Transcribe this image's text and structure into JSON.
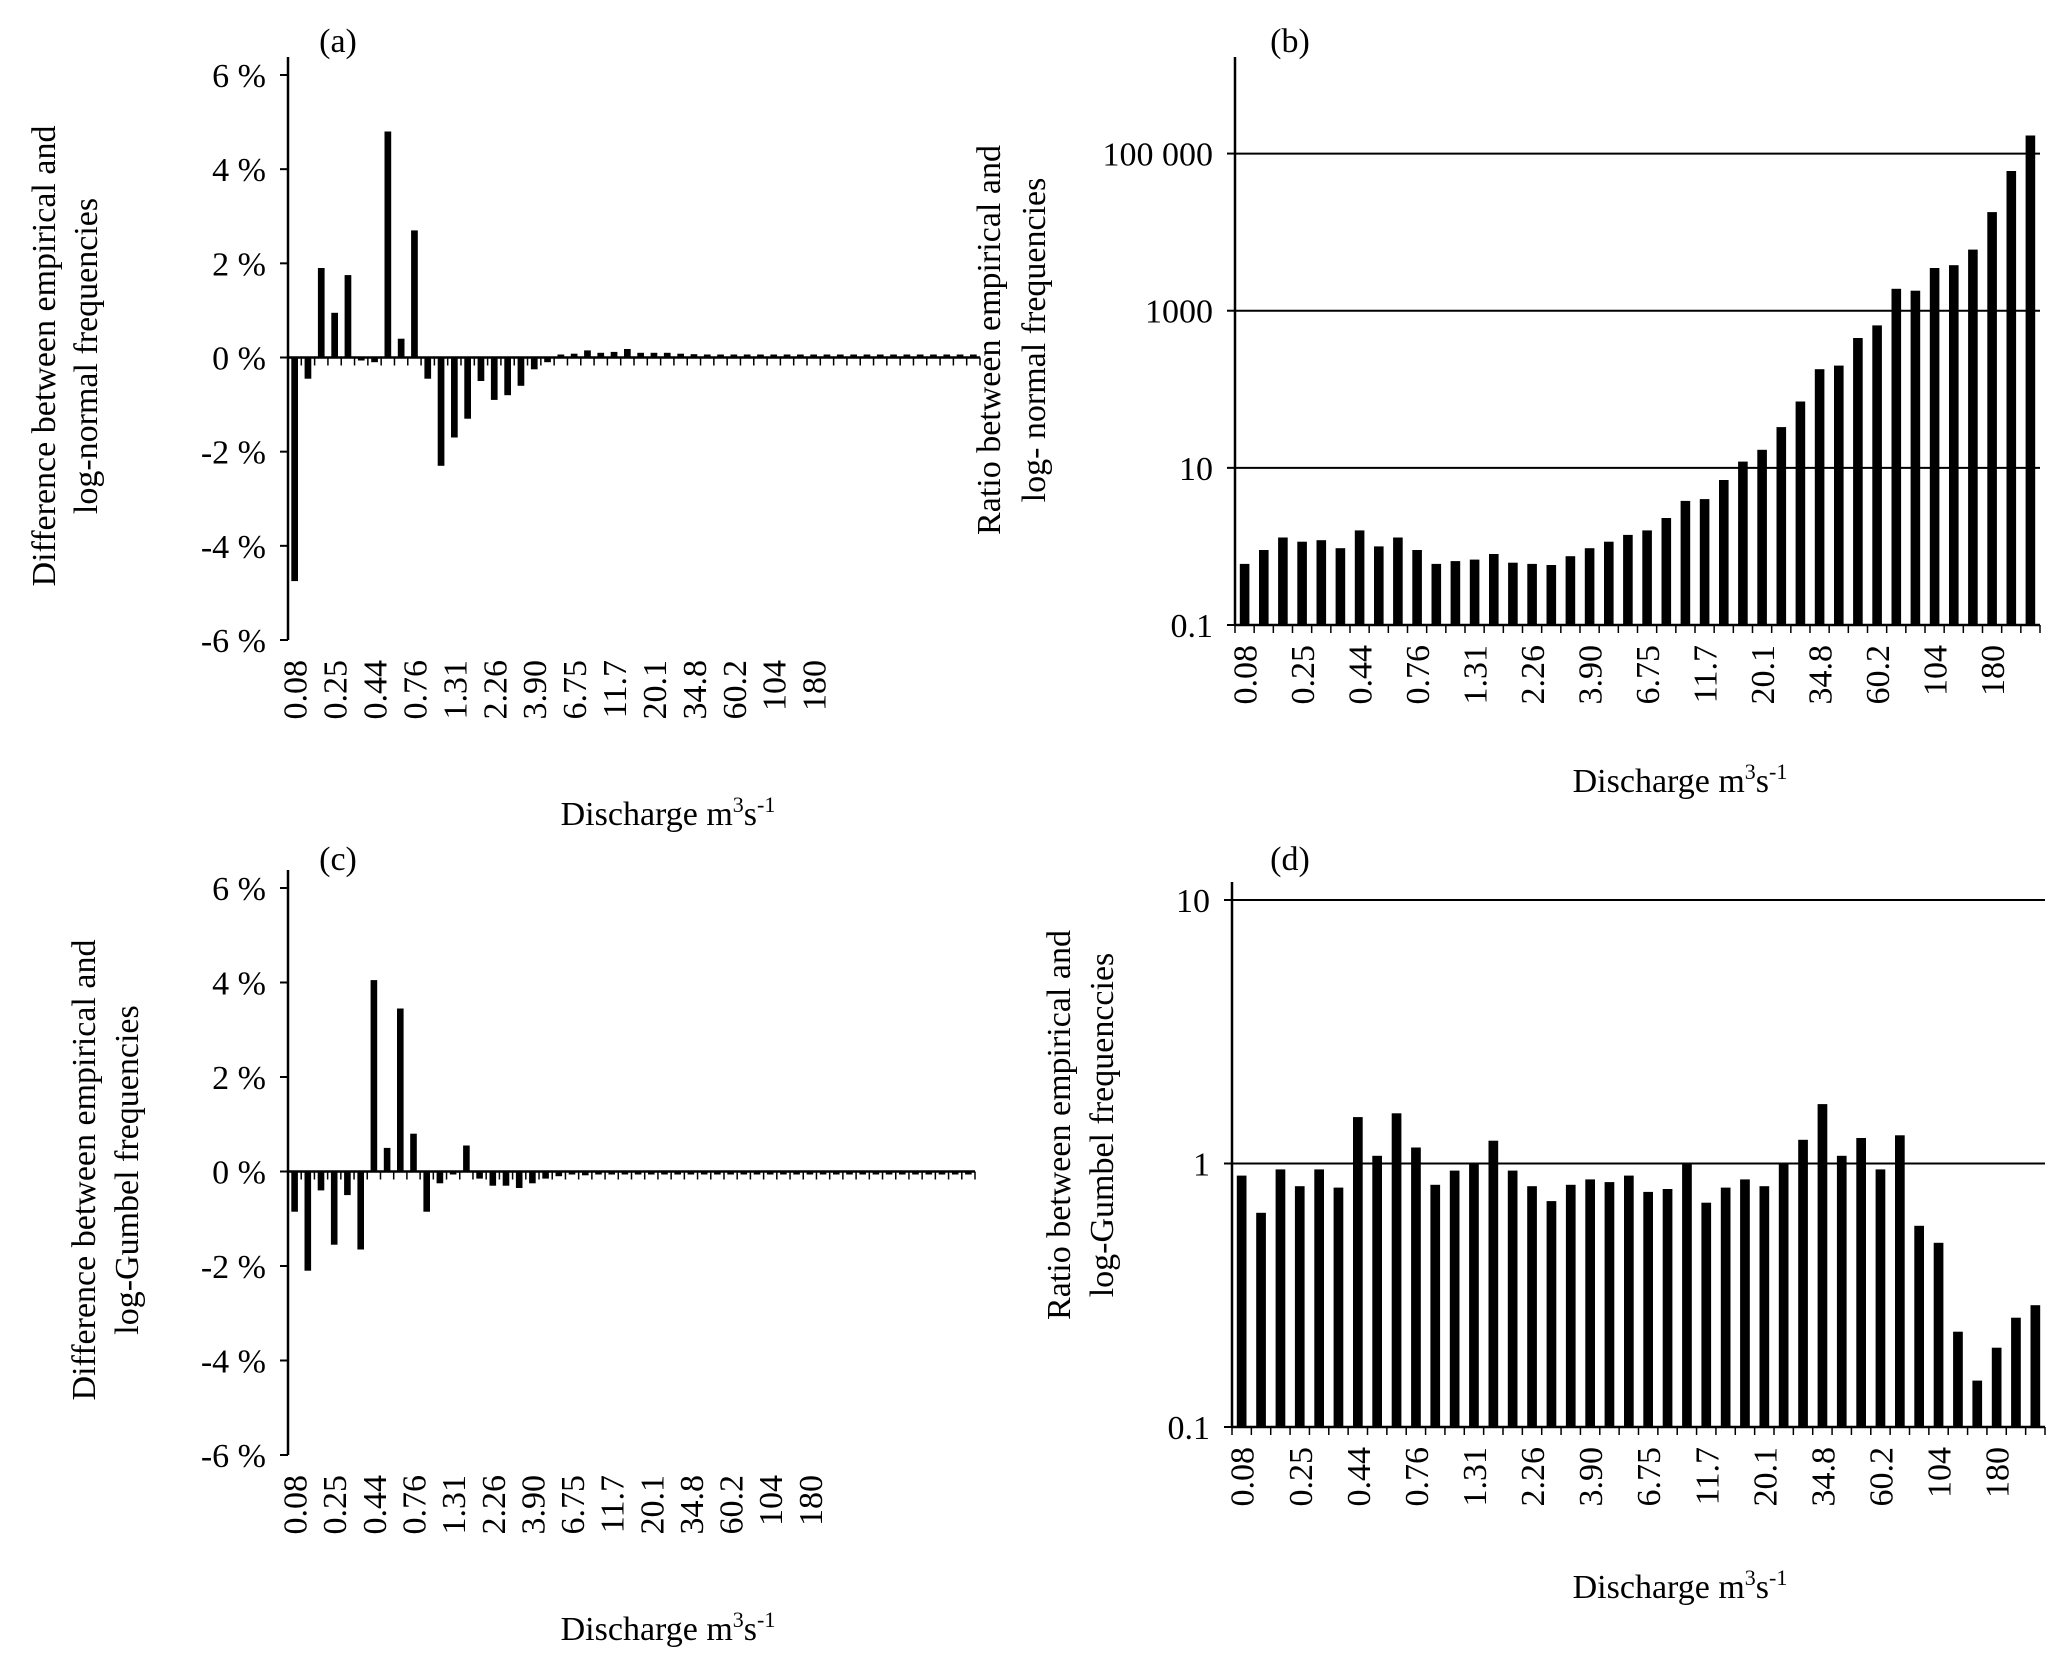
{
  "xlabel_main": "Discharge m",
  "xlabel_sup": "3",
  "xlabel_mid": "s",
  "xlabel_sup2": "-1",
  "chart_data": [
    {
      "id": "a",
      "panel_label": "(a)",
      "type": "bar",
      "ylabel_lines": [
        "Difference between empirical and",
        "log-normal frequencies"
      ],
      "yscale": "linear",
      "ylim": [
        -6,
        6
      ],
      "yticks": [
        6,
        4,
        2,
        0,
        -2,
        -4,
        -6
      ],
      "ytick_labels": [
        "6 %",
        "4 %",
        "2 %",
        "0 %",
        "-2 %",
        "-4 %",
        "-6 %"
      ],
      "grid": false,
      "xtick_labels": [
        "0.08",
        "0.25",
        "0.44",
        "0.76",
        "1.31",
        "2.26",
        "3.90",
        "6.75",
        "11.7",
        "20.1",
        "34.8",
        "60.2",
        "104",
        "180"
      ],
      "xlabel": "Discharge m3s-1",
      "values": [
        -4.75,
        -0.45,
        1.9,
        0.95,
        1.75,
        -0.05,
        -0.1,
        4.8,
        0.4,
        2.7,
        -0.45,
        -2.3,
        -1.7,
        -1.3,
        -0.5,
        -0.9,
        -0.8,
        -0.6,
        -0.25,
        -0.1,
        0.05,
        0.08,
        0.15,
        0.1,
        0.12,
        0.18,
        0.1,
        0.1,
        0.1,
        0.08,
        0.07,
        0.06,
        0.05,
        0.06,
        0.04,
        0.03,
        0.02,
        0.02,
        0.01,
        0.01,
        0.01,
        0.01,
        0.005,
        0.005,
        0.005,
        0.005,
        0.005,
        0.005,
        0.005,
        0.005,
        0.005,
        0.005
      ]
    },
    {
      "id": "b",
      "panel_label": "(b)",
      "type": "bar",
      "ylabel_lines": [
        "Ratio between empirical and",
        "log- normal frequencies"
      ],
      "yscale": "log",
      "ylim": [
        0.1,
        1000000
      ],
      "yticks": [
        0.1,
        10,
        1000,
        100000
      ],
      "ytick_labels": [
        "0.1",
        "10",
        "1000",
        "100 000"
      ],
      "grid": true,
      "xtick_labels": [
        "0.08",
        "0.25",
        "0.44",
        "0.76",
        "1.31",
        "2.26",
        "3.90",
        "6.75",
        "11.7",
        "20.1",
        "34.8",
        "60.2",
        "104",
        "180"
      ],
      "xlabel": "Discharge m3s-1",
      "values": [
        0.6,
        0.9,
        1.3,
        1.15,
        1.2,
        0.95,
        1.6,
        1.0,
        1.3,
        0.9,
        0.6,
        0.65,
        0.68,
        0.8,
        0.62,
        0.6,
        0.58,
        0.75,
        0.95,
        1.15,
        1.4,
        1.6,
        2.3,
        3.8,
        4.0,
        7.0,
        12,
        17,
        33,
        70,
        180,
        200,
        450,
        650,
        1900,
        1800,
        3500,
        3800,
        6000,
        18000,
        60000,
        170000
      ]
    },
    {
      "id": "c",
      "panel_label": "(c)",
      "type": "bar",
      "ylabel_lines": [
        "Difference between empirical and",
        "log-Gumbel frequencies"
      ],
      "yscale": "linear",
      "ylim": [
        -6,
        6
      ],
      "yticks": [
        6,
        4,
        2,
        0,
        -2,
        -4,
        -6
      ],
      "ytick_labels": [
        "6 %",
        "4 %",
        "2 %",
        "0 %",
        "-2 %",
        "-4 %",
        "-6 %"
      ],
      "grid": false,
      "xtick_labels": [
        "0.08",
        "0.25",
        "0.44",
        "0.76",
        "1.31",
        "2.26",
        "3.90",
        "6.75",
        "11.7",
        "20.1",
        "34.8",
        "60.2",
        "104",
        "180"
      ],
      "xlabel": "Discharge m3s-1",
      "values": [
        -0.85,
        -2.1,
        -0.4,
        -1.55,
        -0.5,
        -1.65,
        4.05,
        0.5,
        3.45,
        0.8,
        -0.85,
        -0.25,
        -0.05,
        0.55,
        -0.15,
        -0.3,
        -0.3,
        -0.35,
        -0.25,
        -0.15,
        -0.1,
        -0.05,
        -0.08,
        -0.05,
        -0.05,
        -0.03,
        -0.03,
        -0.02,
        -0.02,
        -0.01,
        -0.01,
        -0.01,
        -0.005,
        -0.005,
        -0.005,
        -0.005,
        -0.005,
        -0.005,
        -0.005,
        -0.005,
        -0.005,
        -0.005,
        -0.005,
        -0.005,
        -0.005,
        -0.005,
        -0.005,
        -0.005,
        -0.005,
        -0.005,
        -0.005,
        -0.005
      ]
    },
    {
      "id": "d",
      "panel_label": "(d)",
      "type": "bar",
      "ylabel_lines": [
        "Ratio between empirical and",
        "log-Gumbel frequenccies"
      ],
      "yscale": "log",
      "ylim": [
        0.1,
        10
      ],
      "yticks": [
        0.1,
        1,
        10
      ],
      "ytick_labels": [
        "0.1",
        "1",
        "10"
      ],
      "grid": true,
      "xtick_labels": [
        "0.08",
        "0.25",
        "0.44",
        "0.76",
        "1.31",
        "2.26",
        "3.90",
        "6.75",
        "11.7",
        "20.1",
        "34.8",
        "60.2",
        "104",
        "180"
      ],
      "xlabel": "Discharge m3s-1",
      "values": [
        0.9,
        0.65,
        0.95,
        0.82,
        0.95,
        0.81,
        1.5,
        1.07,
        1.55,
        1.15,
        0.83,
        0.94,
        1.0,
        1.22,
        0.94,
        0.82,
        0.72,
        0.83,
        0.87,
        0.85,
        0.9,
        0.78,
        0.8,
        1.0,
        0.71,
        0.81,
        0.87,
        0.82,
        1.0,
        1.23,
        1.68,
        1.07,
        1.25,
        0.95,
        1.28,
        0.58,
        0.5,
        0.23,
        0.15,
        0.2,
        0.26,
        0.29
      ]
    }
  ]
}
